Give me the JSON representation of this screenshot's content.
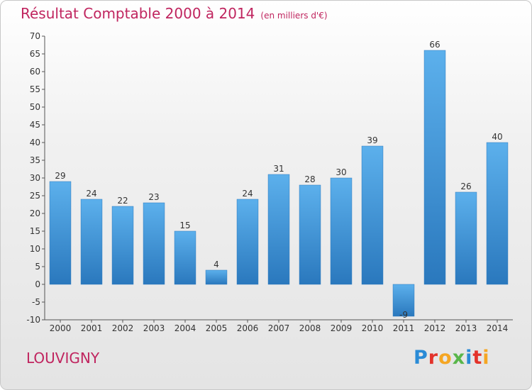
{
  "title": "Résultat Comptable 2000 à 2014",
  "subtitle": "(en milliers d'€)",
  "commune": "LOUVIGNY",
  "logo": {
    "letters": [
      "P",
      "r",
      "o",
      "x",
      "i",
      "t",
      "i"
    ],
    "colors": [
      "#2a8bd6",
      "#e3332b",
      "#f5a623",
      "#59b64a",
      "#2a8bd6",
      "#e3332b",
      "#f5a623"
    ]
  },
  "chart_data": {
    "type": "bar",
    "categories": [
      "2000",
      "2001",
      "2002",
      "2003",
      "2004",
      "2005",
      "2006",
      "2007",
      "2008",
      "2009",
      "2010",
      "2011",
      "2012",
      "2013",
      "2014"
    ],
    "values": [
      29,
      24,
      22,
      23,
      15,
      4,
      24,
      31,
      28,
      30,
      39,
      -9,
      66,
      26,
      40
    ],
    "labels": [
      "29",
      "24",
      "22",
      "23",
      "15",
      "4",
      "24",
      "31",
      "28",
      "30",
      "39",
      "-9",
      "66",
      "26",
      "40"
    ],
    "ylim": [
      -10,
      70
    ],
    "yticks": [
      -10,
      -5,
      0,
      5,
      10,
      15,
      20,
      25,
      30,
      35,
      40,
      45,
      50,
      55,
      60,
      65,
      70
    ],
    "grid": false,
    "bar_color": "#3a8fd4"
  }
}
